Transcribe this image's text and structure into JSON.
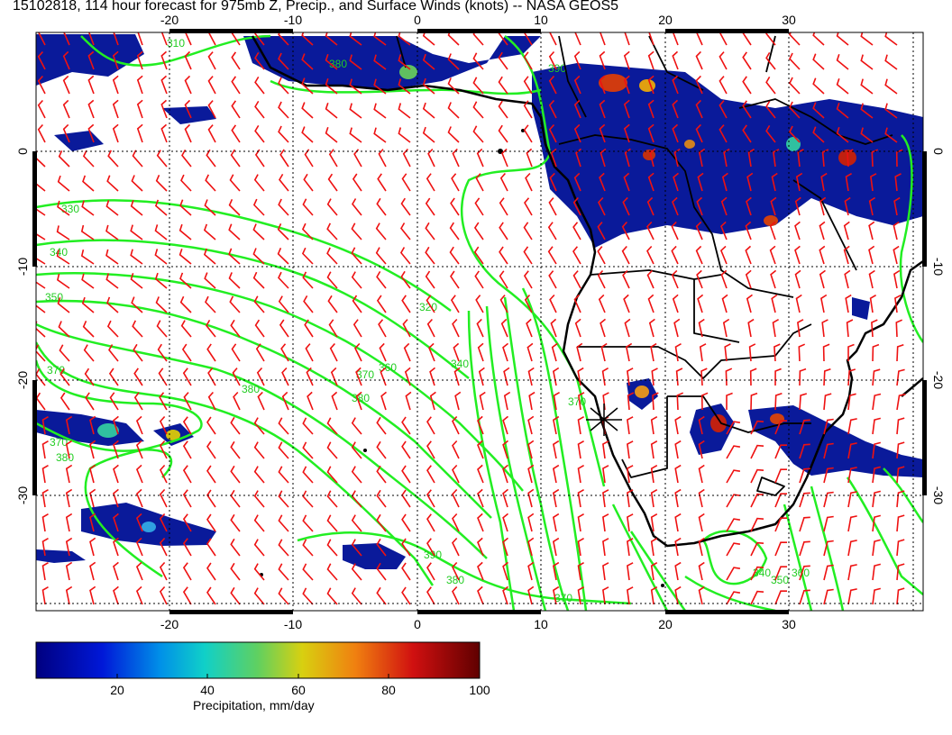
{
  "title": "15102818, 114 hour forecast for 975mb Z, Precip., and Surface Winds (knots) -- NASA GEOS5",
  "map": {
    "x_ticks": [
      "-20",
      "-10",
      "0",
      "10",
      "20",
      "30"
    ],
    "y_ticks": [
      "0",
      "-10",
      "-20",
      "-30"
    ],
    "contour_labels": [
      "310",
      "330",
      "340",
      "350",
      "360",
      "370",
      "380",
      "390",
      "320",
      "340",
      "380",
      "370",
      "380",
      "370",
      "380",
      "370",
      "390",
      "380",
      "370",
      "340",
      "350",
      "360"
    ],
    "colors": {
      "contour": "#22ee22",
      "wind_barb": "#ee1111",
      "coast": "#000000",
      "precip_low": "#0a1a9a",
      "precip_high": "#aa1010"
    }
  },
  "colorbar": {
    "label": "Precipitation, mm/day",
    "ticks": [
      "20",
      "40",
      "60",
      "80",
      "100"
    ]
  }
}
